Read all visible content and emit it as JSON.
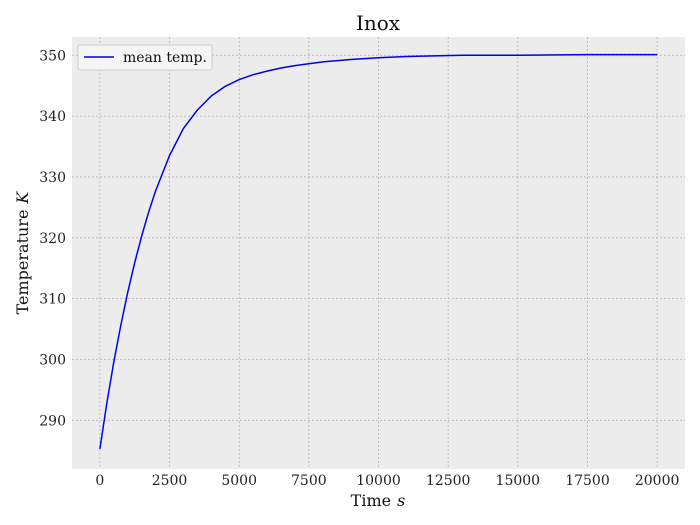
{
  "chart_data": {
    "type": "line",
    "title": "Inox",
    "xlabel": "Time",
    "xlabel_unit": "s",
    "ylabel": "Temperature",
    "ylabel_unit": "K",
    "xlim": [
      -1000,
      21000
    ],
    "ylim": [
      282,
      353
    ],
    "x_ticks": [
      0,
      2500,
      5000,
      7500,
      10000,
      12500,
      15000,
      17500,
      20000
    ],
    "y_ticks": [
      290,
      300,
      310,
      320,
      330,
      340,
      350
    ],
    "grid": true,
    "legend_position": "upper-left",
    "series": [
      {
        "name": "mean temp.",
        "color": "#0000ee",
        "points": [
          [
            0,
            285.3
          ],
          [
            250,
            292.8
          ],
          [
            500,
            299.6
          ],
          [
            750,
            305.6
          ],
          [
            1000,
            311.0
          ],
          [
            1250,
            315.9
          ],
          [
            1500,
            320.3
          ],
          [
            1750,
            324.2
          ],
          [
            2000,
            327.7
          ],
          [
            2500,
            333.5
          ],
          [
            3000,
            338.0
          ],
          [
            3500,
            341.0
          ],
          [
            4000,
            343.3
          ],
          [
            4500,
            344.9
          ],
          [
            5000,
            346.0
          ],
          [
            5500,
            346.8
          ],
          [
            6000,
            347.4
          ],
          [
            6500,
            347.9
          ],
          [
            7000,
            348.3
          ],
          [
            7500,
            348.6
          ],
          [
            8000,
            348.9
          ],
          [
            9000,
            349.3
          ],
          [
            10000,
            349.6
          ],
          [
            11000,
            349.8
          ],
          [
            12000,
            349.9
          ],
          [
            13000,
            350.0
          ],
          [
            15000,
            350.0
          ],
          [
            17500,
            350.1
          ],
          [
            20000,
            350.1
          ]
        ]
      }
    ]
  }
}
